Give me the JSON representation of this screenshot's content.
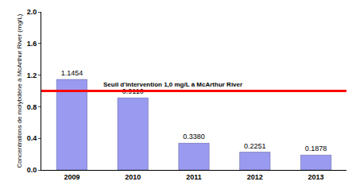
{
  "chart_data": {
    "type": "bar",
    "categories": [
      "2009",
      "2010",
      "2011",
      "2012",
      "2013"
    ],
    "values": [
      1.1454,
      0.911,
      0.338,
      0.2251,
      0.1878
    ],
    "value_labels": [
      "1.1454",
      "0.9110",
      "0.3380",
      "0.2251",
      "0.1878"
    ],
    "data_labels": true,
    "color": "#9a9af0",
    "y_label": "Concentrations de molybdène à McArthur River (mg/L)",
    "ylim": [
      0,
      2.0
    ],
    "yticks": [
      {
        "value": 0,
        "label": "0.0"
      },
      {
        "value": 0.4,
        "label": "0.4"
      },
      {
        "value": 0.8,
        "label": "0.8"
      },
      {
        "value": 1.2,
        "label": "1.2"
      },
      {
        "value": 1.6,
        "label": "1.6"
      },
      {
        "value": 2.0,
        "label": "2.0"
      }
    ],
    "grid": false,
    "annotations": [
      {
        "text": "Seuil d'intervention 1,0 mg/L à McArthur River",
        "y": 1.0,
        "color": "#ff0000"
      }
    ]
  }
}
